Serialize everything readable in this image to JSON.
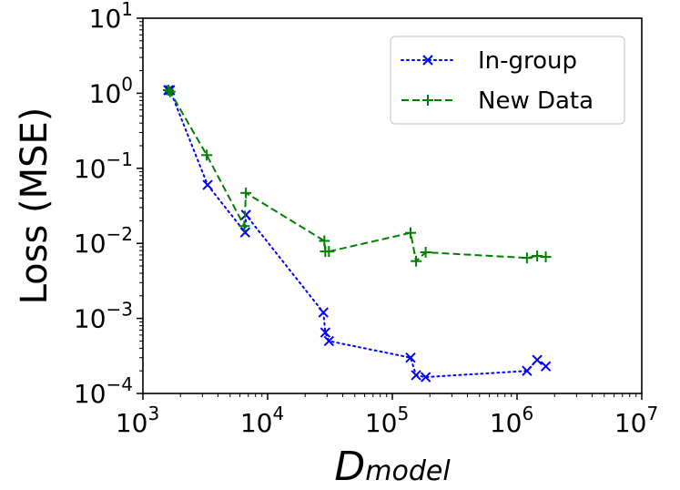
{
  "chart_data": {
    "type": "line",
    "x_scale": "log",
    "y_scale": "log",
    "xlabel_main": "D",
    "xlabel_sub": "model",
    "ylabel": "Loss (MSE)",
    "xlim": [
      1000,
      10000000
    ],
    "ylim": [
      0.0001,
      10
    ],
    "x_ticks": [
      {
        "value": 1000,
        "base": "10",
        "exp": "3"
      },
      {
        "value": 10000,
        "base": "10",
        "exp": "4"
      },
      {
        "value": 100000,
        "base": "10",
        "exp": "5"
      },
      {
        "value": 1000000,
        "base": "10",
        "exp": "6"
      },
      {
        "value": 10000000,
        "base": "10",
        "exp": "7"
      }
    ],
    "y_ticks": [
      {
        "value": 0.0001,
        "base": "10",
        "exp": "−4"
      },
      {
        "value": 0.001,
        "base": "10",
        "exp": "−3"
      },
      {
        "value": 0.01,
        "base": "10",
        "exp": "−2"
      },
      {
        "value": 0.1,
        "base": "10",
        "exp": "−1"
      },
      {
        "value": 1,
        "base": "10",
        "exp": "0"
      },
      {
        "value": 10,
        "base": "10",
        "exp": "1"
      }
    ],
    "legend_position": "top-right",
    "series": [
      {
        "name": "In-group",
        "color": "#0000ff",
        "line_style": "dotted",
        "marker": "x",
        "points": [
          [
            1600,
            1.1
          ],
          [
            1650,
            1.1
          ],
          [
            3300,
            0.06
          ],
          [
            6600,
            0.014
          ],
          [
            6700,
            0.024
          ],
          [
            28000,
            0.0012
          ],
          [
            29000,
            0.00065
          ],
          [
            31000,
            0.0005
          ],
          [
            140000,
            0.0003
          ],
          [
            155000,
            0.000175
          ],
          [
            185000,
            0.000165
          ],
          [
            1200000,
            0.0002
          ],
          [
            1450000,
            0.00028
          ],
          [
            1700000,
            0.00023
          ]
        ]
      },
      {
        "name": "New Data",
        "color": "#008000",
        "line_style": "dashed",
        "marker": "+",
        "points": [
          [
            1600,
            1.1
          ],
          [
            1650,
            1.05
          ],
          [
            3250,
            0.15
          ],
          [
            6500,
            0.017
          ],
          [
            6700,
            0.047
          ],
          [
            28500,
            0.0108
          ],
          [
            29000,
            0.0078
          ],
          [
            31000,
            0.0078
          ],
          [
            140000,
            0.0138
          ],
          [
            155000,
            0.0058
          ],
          [
            185000,
            0.0076
          ],
          [
            1200000,
            0.0064
          ],
          [
            1450000,
            0.0068
          ],
          [
            1700000,
            0.0066
          ]
        ]
      }
    ]
  }
}
